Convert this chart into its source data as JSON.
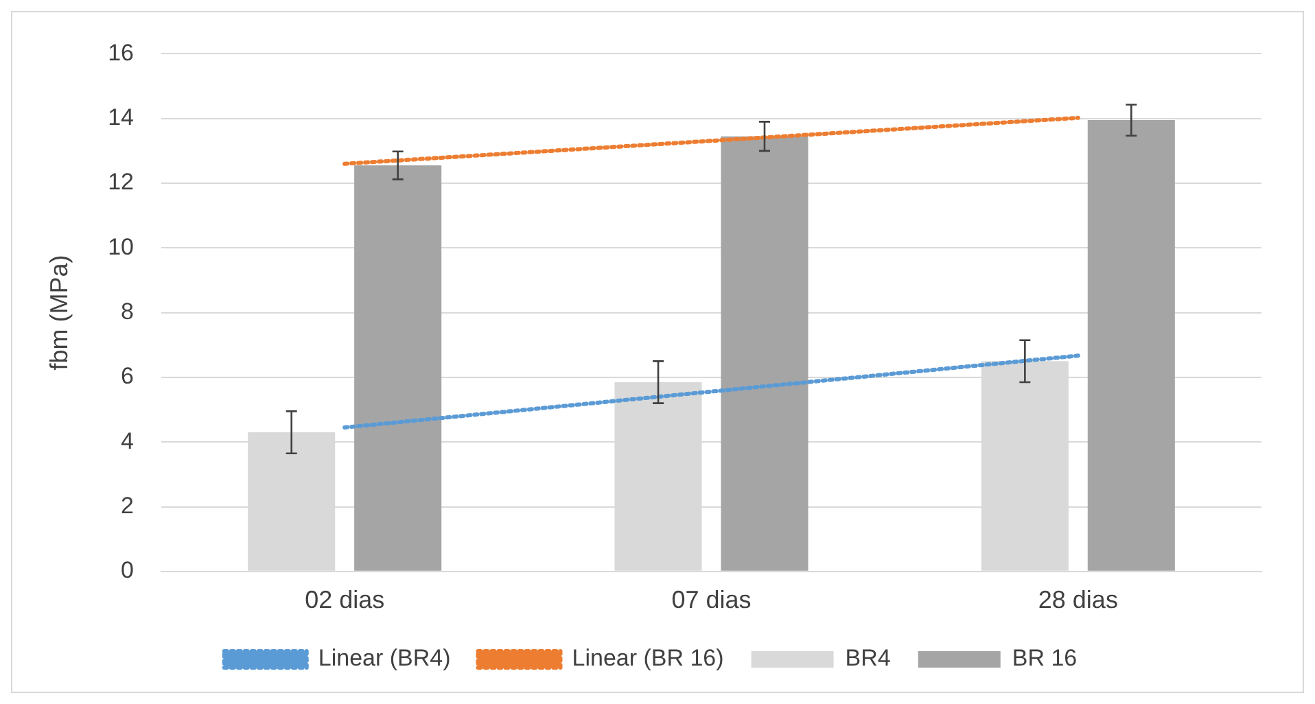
{
  "chart_data": {
    "type": "bar",
    "ylabel": "fbm (MPa)",
    "categories": [
      "02 dias",
      "07 dias",
      "28 dias"
    ],
    "series": [
      {
        "name": "BR4",
        "color": "#d9d9d9",
        "values": [
          4.3,
          5.85,
          6.5
        ],
        "errors": [
          0.65,
          0.65,
          0.65
        ]
      },
      {
        "name": "BR 16",
        "color": "#a5a5a5",
        "values": [
          12.55,
          13.45,
          13.95
        ],
        "errors": [
          0.43,
          0.45,
          0.48
        ]
      },
      {
        "name": "Linear (BR4)",
        "type": "line",
        "color": "#5b9bd5",
        "line_style": "dotted",
        "values": [
          4.45,
          5.56,
          6.67
        ]
      },
      {
        "name": "Linear (BR 16)",
        "type": "line",
        "color": "#ed7d31",
        "line_style": "dotted",
        "values": [
          12.6,
          13.31,
          14.02
        ]
      }
    ],
    "ylim": [
      0,
      16
    ],
    "yticks": [
      0,
      2,
      4,
      6,
      8,
      10,
      12,
      14,
      16
    ],
    "grid": "y",
    "legend": "bottom",
    "marker": "none"
  }
}
